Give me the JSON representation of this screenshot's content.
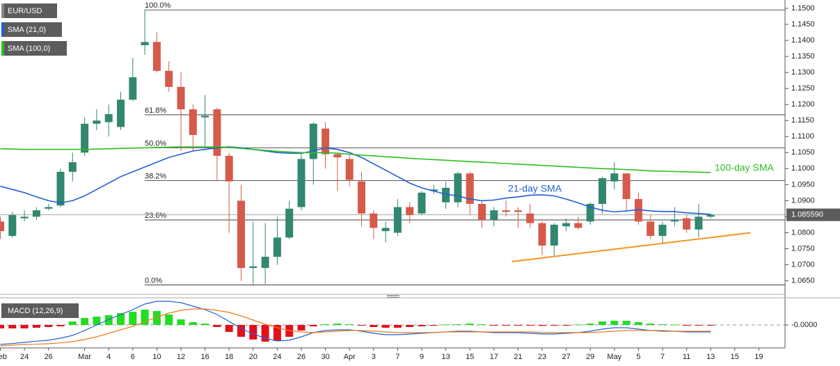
{
  "chart_data": [
    {
      "type": "candlestick",
      "candles": {
        "name": "EUR/USD",
        "up_color": "#31876f",
        "down_color": "#d65a4a",
        "open": [
          1.0835,
          1.079,
          1.0845,
          1.085,
          1.0875,
          1.0885,
          1.099,
          1.105,
          1.114,
          1.1145,
          1.113,
          1.1215,
          1.1385,
          1.1395,
          1.1305,
          1.1255,
          1.1185,
          1.116,
          1.1185,
          1.104,
          1.09,
          1.069,
          1.069,
          1.0725,
          1.0785,
          1.088,
          1.103,
          1.1125,
          1.1045,
          1.103,
          1.096,
          1.086,
          1.0805,
          1.08,
          1.088,
          1.086,
          1.093,
          1.0895,
          1.0895,
          1.0985,
          1.089,
          1.084,
          1.087,
          1.087,
          1.086,
          1.083,
          1.076,
          1.082,
          1.083,
          1.0835,
          1.089,
          1.096,
          1.0985,
          1.0905,
          1.0835,
          1.079,
          1.0835,
          1.0845,
          1.081,
          1.085,
          null,
          null,
          null,
          null
        ],
        "high": [
          1.085,
          1.0865,
          1.087,
          1.088,
          1.089,
          1.1,
          1.105,
          1.116,
          1.1185,
          1.12,
          1.124,
          1.1345,
          1.1495,
          1.1425,
          1.1335,
          1.13,
          1.12,
          1.123,
          1.119,
          1.105,
          1.095,
          1.0835,
          1.083,
          1.085,
          1.09,
          1.105,
          1.1145,
          1.1145,
          1.105,
          1.1045,
          1.099,
          1.087,
          1.0835,
          1.0905,
          1.0895,
          1.093,
          1.095,
          1.096,
          1.099,
          1.099,
          1.09,
          1.088,
          1.09,
          1.088,
          1.089,
          1.0835,
          1.083,
          1.0845,
          1.085,
          1.0895,
          1.0975,
          1.102,
          1.0985,
          1.0925,
          1.0855,
          1.0835,
          1.088,
          1.0855,
          1.089,
          1.086,
          null,
          null,
          null,
          null
        ],
        "low": [
          1.078,
          1.0785,
          1.0835,
          1.084,
          1.087,
          1.088,
          1.096,
          1.104,
          1.112,
          1.11,
          1.112,
          1.121,
          1.1355,
          1.13,
          1.124,
          1.1055,
          1.1055,
          1.1065,
          1.096,
          1.08,
          1.065,
          1.0635,
          1.064,
          1.07,
          1.078,
          1.087,
          1.095,
          1.1,
          1.093,
          1.0945,
          1.082,
          1.078,
          1.077,
          1.079,
          1.083,
          1.0855,
          1.092,
          1.0875,
          1.088,
          1.0855,
          1.0815,
          1.082,
          1.085,
          1.0815,
          1.0815,
          1.073,
          1.0725,
          1.0805,
          1.081,
          1.0825,
          1.086,
          1.0935,
          1.087,
          1.0825,
          1.078,
          1.0765,
          1.082,
          1.08,
          1.0785,
          1.0845,
          null,
          null,
          null,
          null
        ],
        "close": [
          1.0805,
          1.0855,
          1.085,
          1.087,
          1.088,
          1.099,
          1.102,
          1.114,
          1.115,
          1.117,
          1.1215,
          1.1285,
          1.1395,
          1.1305,
          1.1255,
          1.1185,
          1.1105,
          1.1165,
          1.104,
          1.096,
          1.069,
          1.0695,
          1.0725,
          1.0785,
          1.0875,
          1.103,
          1.114,
          1.1045,
          1.1035,
          1.0965,
          1.086,
          1.0815,
          1.0815,
          1.088,
          1.0855,
          1.0925,
          1.0935,
          1.094,
          1.0985,
          1.089,
          1.084,
          1.087,
          1.0865,
          1.0865,
          1.083,
          1.076,
          1.0825,
          1.083,
          1.0815,
          1.089,
          1.097,
          1.0985,
          1.0905,
          1.0835,
          1.079,
          1.0825,
          1.084,
          1.081,
          1.085,
          1.0856,
          null,
          null,
          null,
          null
        ]
      },
      "series": [
        {
          "name": "SMA (21,0)",
          "color": "#1f5fd1",
          "values": [
            1.0945,
            1.0935,
            1.0925,
            1.0912,
            1.09,
            1.0893,
            1.09,
            1.0915,
            1.0935,
            1.0955,
            1.0975,
            1.099,
            1.1005,
            1.102,
            1.1035,
            1.1045,
            1.1055,
            1.106,
            1.1065,
            1.1068,
            1.1065,
            1.106,
            1.1055,
            1.105,
            1.1048,
            1.1048,
            1.1055,
            1.1065,
            1.106,
            1.105,
            1.1035,
            1.1015,
            1.0995,
            1.0975,
            1.0955,
            1.094,
            1.093,
            1.092,
            1.0915,
            1.0905,
            1.09,
            1.0902,
            1.0908,
            1.0912,
            1.0917,
            1.0918,
            1.0915,
            1.0905,
            1.0893,
            1.088,
            1.087,
            1.0865,
            1.0868,
            1.0872,
            1.0868,
            1.0866,
            1.0866,
            1.0862,
            1.086,
            1.0857,
            null,
            null,
            null,
            null
          ]
        },
        {
          "name": "SMA (100,0)",
          "color": "#2bbf1f",
          "values": [
            1.1062,
            1.1061,
            1.106,
            1.106,
            1.106,
            1.106,
            1.106,
            1.106,
            1.1061,
            1.1062,
            1.1063,
            1.1064,
            1.1065,
            1.1066,
            1.1067,
            1.1068,
            1.1068,
            1.1068,
            1.1068,
            1.1066,
            1.1063,
            1.106,
            1.1057,
            1.1054,
            1.1052,
            1.105,
            1.105,
            1.105,
            1.1048,
            1.1045,
            1.1042,
            1.104,
            1.1037,
            1.1035,
            1.1032,
            1.103,
            1.1028,
            1.1026,
            1.1024,
            1.1022,
            1.102,
            1.1018,
            1.1016,
            1.1014,
            1.1012,
            1.101,
            1.1008,
            1.1006,
            1.1004,
            1.1002,
            1.1,
            1.0999,
            1.0997,
            1.0995,
            1.0993,
            1.0992,
            1.0991,
            1.099,
            1.0989,
            1.0988,
            null,
            null,
            null,
            null
          ]
        }
      ],
      "annotations": [
        {
          "text": "21-day SMA",
          "color": "#1f5fd1"
        },
        {
          "text": "100-day SMA",
          "color": "#2bbf1f"
        }
      ],
      "fib_levels": [
        {
          "label": "100.0%",
          "value": 1.1495
        },
        {
          "label": "61.8%",
          "value": 1.1168
        },
        {
          "label": "50.0%",
          "value": 1.1065
        },
        {
          "label": "38.2%",
          "value": 1.0963
        },
        {
          "label": "23.6%",
          "value": 1.084
        },
        {
          "label": "0.0%",
          "value": 1.0637
        }
      ],
      "trendline": {
        "x": [
          42.5,
          62.3
        ],
        "y": [
          1.071,
          1.08
        ],
        "color": "#f7941d"
      },
      "last_price": {
        "value": 1.08559,
        "label": "1.085590"
      },
      "ylim": [
        1.061,
        1.1526
      ],
      "yticks": [
        {
          "value": 1.065,
          "label": "1.0650"
        },
        {
          "value": 1.07,
          "label": "1.0700"
        },
        {
          "value": 1.075,
          "label": "1.0750"
        },
        {
          "value": 1.08,
          "label": "1.0800"
        },
        {
          "value": 1.085,
          "label": "1.0850"
        },
        {
          "value": 1.09,
          "label": "1.0900"
        },
        {
          "value": 1.095,
          "label": "1.0950"
        },
        {
          "value": 1.1,
          "label": "1.1000"
        },
        {
          "value": 1.105,
          "label": "1.1050"
        },
        {
          "value": 1.11,
          "label": "1.1100"
        },
        {
          "value": 1.115,
          "label": "1.1150"
        },
        {
          "value": 1.12,
          "label": "1.1200"
        },
        {
          "value": 1.125,
          "label": "1.1250"
        },
        {
          "value": 1.13,
          "label": "1.1300"
        },
        {
          "value": 1.135,
          "label": "1.1350"
        },
        {
          "value": 1.14,
          "label": "1.1400"
        },
        {
          "value": 1.145,
          "label": "1.1450"
        },
        {
          "value": 1.15,
          "label": "1.1500"
        }
      ]
    },
    {
      "type": "macd",
      "title": "MACD (12,26,9)",
      "categories": [
        "Feb",
        null,
        "24",
        null,
        "26",
        null,
        null,
        "Mar",
        null,
        "4",
        null,
        "6",
        null,
        "10",
        null,
        "12",
        null,
        "16",
        null,
        "18",
        null,
        "20",
        null,
        "24",
        null,
        "26",
        null,
        "30",
        null,
        "Apr",
        null,
        "3",
        null,
        "7",
        null,
        "9",
        null,
        "13",
        null,
        "15",
        null,
        "17",
        null,
        "21",
        null,
        "23",
        null,
        "27",
        null,
        "29",
        null,
        "May",
        null,
        "5",
        null,
        "7",
        null,
        "11",
        null,
        "13",
        null,
        "15",
        null,
        "19"
      ],
      "histogram": {
        "up_color": "#22dd22",
        "down_color": "#e3101c",
        "values": [
          -0.0015,
          -0.0015,
          -0.0015,
          -0.0012,
          -0.0009,
          -0.0006,
          0.0015,
          0.003,
          0.0036,
          0.0042,
          0.0051,
          0.0057,
          0.0066,
          0.006,
          0.0045,
          0.0024,
          0.0012,
          0.0006,
          -0.0009,
          -0.003,
          -0.0051,
          -0.0063,
          -0.0072,
          -0.0069,
          -0.0051,
          -0.0024,
          -0.0006,
          0.0003,
          0.0006,
          0.0003,
          -0.0003,
          -0.0009,
          -0.0012,
          -0.0012,
          -0.0009,
          -0.0006,
          -0.0003,
          0.0002,
          0.0003,
          0.0006,
          0.0003,
          -0.0002,
          -0.0002,
          -0.0003,
          -0.0003,
          -0.0004,
          -0.0003,
          -0.0002,
          0.0002,
          0.0006,
          0.0015,
          0.0018,
          0.0018,
          0.0012,
          0.0006,
          0.0003,
          0.0002,
          -0.0002,
          -0.0002,
          -0.0001,
          null,
          null,
          null,
          null
        ]
      },
      "series": [
        {
          "color": "#1e5fdc",
          "values": [
            -0.0084,
            -0.008,
            -0.0075,
            -0.007,
            -0.0066,
            -0.0057,
            -0.0045,
            -0.0024,
            0,
            0.0024,
            0.0045,
            0.0066,
            0.009,
            0.0102,
            0.0102,
            0.0096,
            0.0081,
            0.0066,
            0.0045,
            0.0015,
            -0.0015,
            -0.0039,
            -0.0057,
            -0.0069,
            -0.0066,
            -0.0051,
            -0.0033,
            -0.0024,
            -0.0021,
            -0.0021,
            -0.0027,
            -0.0036,
            -0.0042,
            -0.0042,
            -0.0039,
            -0.0036,
            -0.0033,
            -0.003,
            -0.0027,
            -0.0027,
            -0.003,
            -0.0033,
            -0.0033,
            -0.0033,
            -0.0036,
            -0.0039,
            -0.0039,
            -0.0036,
            -0.0033,
            -0.0027,
            -0.0018,
            -0.0012,
            -0.0012,
            -0.0018,
            -0.0024,
            -0.0027,
            -0.0027,
            -0.003,
            -0.003,
            -0.003,
            null,
            null,
            null,
            null
          ]
        },
        {
          "color": "#f07a1a",
          "values": [
            -0.009,
            -0.0087,
            -0.0084,
            -0.0083,
            -0.0081,
            -0.0077,
            -0.0072,
            -0.0063,
            -0.0051,
            -0.0036,
            -0.0021,
            -0.0006,
            0.0015,
            0.0033,
            0.0051,
            0.0063,
            0.0069,
            0.0069,
            0.0063,
            0.0054,
            0.0039,
            0.0021,
            0.0003,
            -0.0012,
            -0.0024,
            -0.003,
            -0.0033,
            -0.003,
            -0.0027,
            -0.0024,
            -0.0024,
            -0.0027,
            -0.003,
            -0.0033,
            -0.0033,
            -0.0033,
            -0.0033,
            -0.003,
            -0.003,
            -0.003,
            -0.003,
            -0.003,
            -0.003,
            -0.003,
            -0.003,
            -0.0033,
            -0.0033,
            -0.0033,
            -0.0033,
            -0.0033,
            -0.003,
            -0.0027,
            -0.0024,
            -0.0024,
            -0.0024,
            -0.0024,
            -0.0027,
            -0.0027,
            -0.0027,
            -0.0027,
            null,
            null,
            null,
            null
          ]
        }
      ],
      "ylim": [
        -0.0099,
        0.0114
      ],
      "yticks": [
        {
          "value": 0,
          "label": "-0.0000"
        }
      ]
    }
  ]
}
